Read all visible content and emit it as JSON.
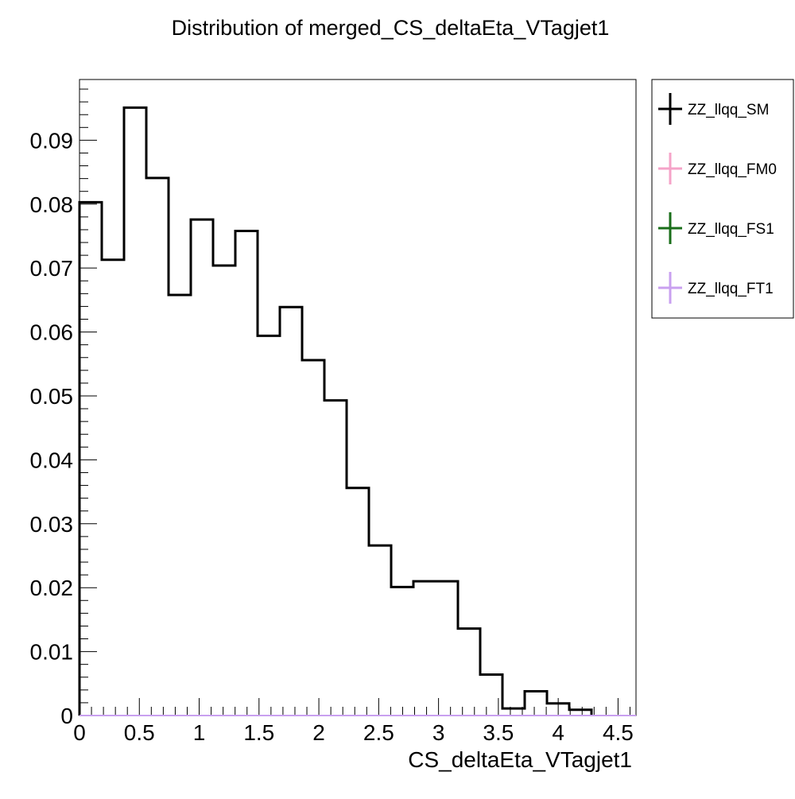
{
  "chart_data": {
    "type": "histogram",
    "title": "Distribution of merged_CS_deltaEta_VTagjet1",
    "xlabel": "CS_deltaEta_VTagjet1",
    "ylabel": "",
    "xlim": [
      0,
      4.65
    ],
    "ylim": [
      0,
      0.0995
    ],
    "xticks": [
      0,
      0.5,
      1,
      1.5,
      2,
      2.5,
      3,
      3.5,
      4,
      4.5
    ],
    "xtick_labels": [
      "0",
      "0.5",
      "1",
      "1.5",
      "2",
      "2.5",
      "3",
      "3.5",
      "4",
      "4.5"
    ],
    "yticks": [
      0,
      0.01,
      0.02,
      0.03,
      0.04,
      0.05,
      0.06,
      0.07,
      0.08,
      0.09
    ],
    "ytick_labels": [
      "0",
      "0.01",
      "0.02",
      "0.03",
      "0.04",
      "0.05",
      "0.06",
      "0.07",
      "0.08",
      "0.09"
    ],
    "bin_edges": [
      0,
      0.186,
      0.372,
      0.558,
      0.744,
      0.93,
      1.116,
      1.302,
      1.488,
      1.674,
      1.86,
      2.046,
      2.232,
      2.418,
      2.604,
      2.79,
      2.976,
      3.162,
      3.348,
      3.534,
      3.72,
      3.906,
      4.092,
      4.278
    ],
    "series": [
      {
        "name": "ZZ_llqq_SM",
        "color": "#000000",
        "values": [
          0.0803,
          0.0713,
          0.0951,
          0.0841,
          0.0658,
          0.0776,
          0.0704,
          0.0758,
          0.0594,
          0.0639,
          0.0556,
          0.0493,
          0.0356,
          0.0266,
          0.0201,
          0.021,
          0.021,
          0.0136,
          0.0064,
          0.0011,
          0.0038,
          0.0019,
          0.0009
        ]
      },
      {
        "name": "ZZ_llqq_FM0",
        "color": "#f5a3c8",
        "values": []
      },
      {
        "name": "ZZ_llqq_FS1",
        "color": "#1a6e1a",
        "values": []
      },
      {
        "name": "ZZ_llqq_FT1",
        "color": "#c9a0f0",
        "values": []
      }
    ],
    "legend_position": "top-right, outside plot"
  }
}
